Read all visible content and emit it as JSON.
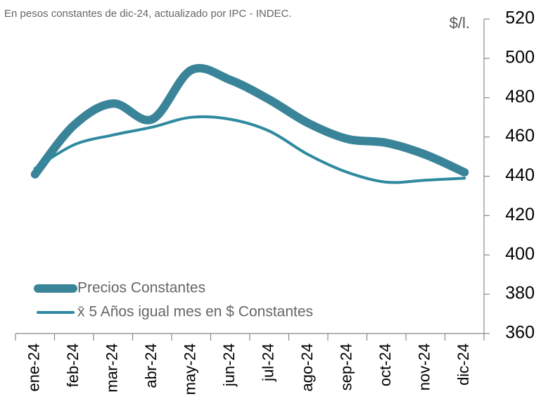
{
  "chart_data": {
    "type": "line",
    "subtitle": "En pesos constantes de dic-24, actualizado por IPC - INDEC.",
    "y_axis_label": "$/l.",
    "categories": [
      "ene-24",
      "feb-24",
      "mar-24",
      "abr-24",
      "may-24",
      "jun-24",
      "jul-24",
      "ago-24",
      "sep-24",
      "oct-24",
      "nov-24",
      "dic-24"
    ],
    "series": [
      {
        "name": "Precios Constantes",
        "color": "#3a8499",
        "width": 12,
        "values": [
          441,
          466,
          477,
          469,
          494,
          489,
          479,
          467,
          459,
          457,
          451,
          442
        ]
      },
      {
        "name": "x̄ 5 Años igual mes en $ Constantes",
        "color": "#2f8aa0",
        "width": 4,
        "values": [
          444,
          456,
          461,
          465,
          470,
          469,
          463,
          451,
          442,
          437,
          438,
          439
        ]
      }
    ],
    "ylim": [
      360,
      520
    ],
    "yticks": [
      360,
      380,
      400,
      420,
      440,
      460,
      480,
      500,
      520
    ],
    "legend": "lower left"
  }
}
